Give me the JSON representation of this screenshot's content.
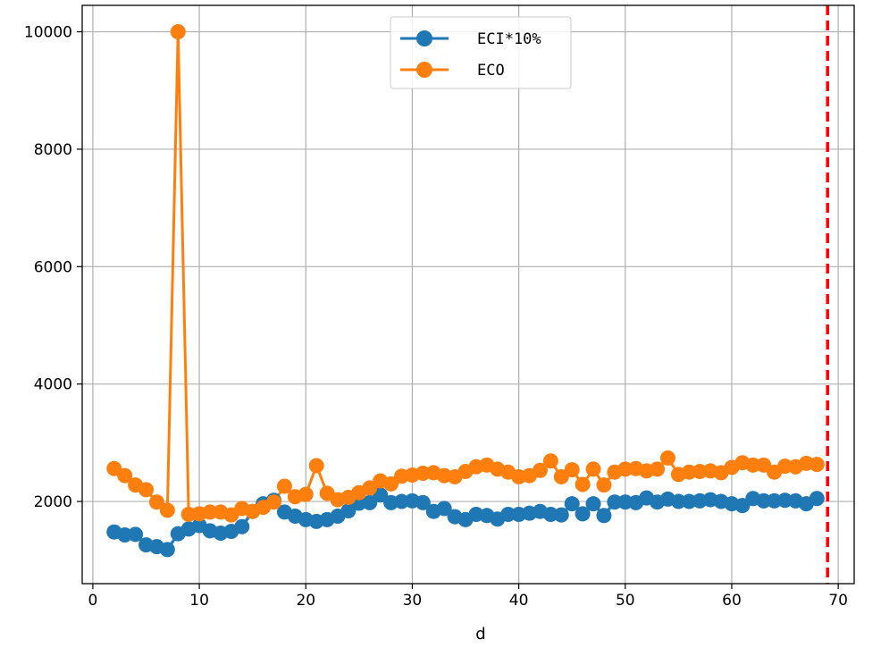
{
  "chart_data": {
    "type": "line",
    "title": "",
    "xlabel": "d",
    "ylabel": "",
    "xlim": [
      -1,
      71.5
    ],
    "ylim": [
      600,
      10450
    ],
    "xticks": [
      0,
      10,
      20,
      30,
      40,
      50,
      60,
      70
    ],
    "yticks": [
      2000,
      4000,
      6000,
      8000,
      10000
    ],
    "grid": true,
    "legend": "top-center",
    "vline": {
      "x": 69,
      "color": "#ff0000",
      "style": "dashed"
    },
    "x": [
      2,
      3,
      4,
      5,
      6,
      7,
      8,
      9,
      10,
      11,
      12,
      13,
      14,
      15,
      16,
      17,
      18,
      19,
      20,
      21,
      22,
      23,
      24,
      25,
      26,
      27,
      28,
      29,
      30,
      31,
      32,
      33,
      34,
      35,
      36,
      37,
      38,
      39,
      40,
      41,
      42,
      43,
      44,
      45,
      46,
      47,
      48,
      49,
      50,
      51,
      52,
      53,
      54,
      55,
      56,
      57,
      58,
      59,
      60,
      61,
      62,
      63,
      64,
      65,
      66,
      67,
      68
    ],
    "series": [
      {
        "name": "ECI*10%",
        "color": "#1f77b4",
        "band": 60,
        "values": [
          1480,
          1430,
          1440,
          1260,
          1230,
          1180,
          1450,
          1530,
          1590,
          1500,
          1460,
          1490,
          1570,
          1830,
          1960,
          2020,
          1820,
          1750,
          1690,
          1660,
          1690,
          1750,
          1840,
          1970,
          1980,
          2110,
          1980,
          2000,
          2010,
          1980,
          1830,
          1880,
          1740,
          1690,
          1780,
          1760,
          1700,
          1780,
          1780,
          1800,
          1830,
          1780,
          1770,
          1960,
          1790,
          1960,
          1760,
          1990,
          1990,
          1980,
          2060,
          1990,
          2040,
          2000,
          2000,
          2010,
          2030,
          2000,
          1960,
          1930,
          2050,
          2010,
          2010,
          2020,
          2010,
          1960,
          2050
        ]
      },
      {
        "name": "ECO",
        "color": "#ff7f0e",
        "values": [
          2560,
          2440,
          2280,
          2200,
          1990,
          1850,
          10000,
          1780,
          1790,
          1820,
          1820,
          1770,
          1880,
          1830,
          1900,
          1990,
          2260,
          2080,
          2120,
          2610,
          2140,
          2030,
          2070,
          2150,
          2230,
          2350,
          2300,
          2430,
          2450,
          2480,
          2490,
          2440,
          2420,
          2510,
          2590,
          2620,
          2550,
          2500,
          2420,
          2440,
          2530,
          2690,
          2420,
          2540,
          2290,
          2550,
          2280,
          2500,
          2550,
          2560,
          2520,
          2550,
          2740,
          2460,
          2500,
          2510,
          2520,
          2490,
          2580,
          2660,
          2620,
          2620,
          2500,
          2600,
          2590,
          2650,
          2630
        ]
      }
    ]
  }
}
